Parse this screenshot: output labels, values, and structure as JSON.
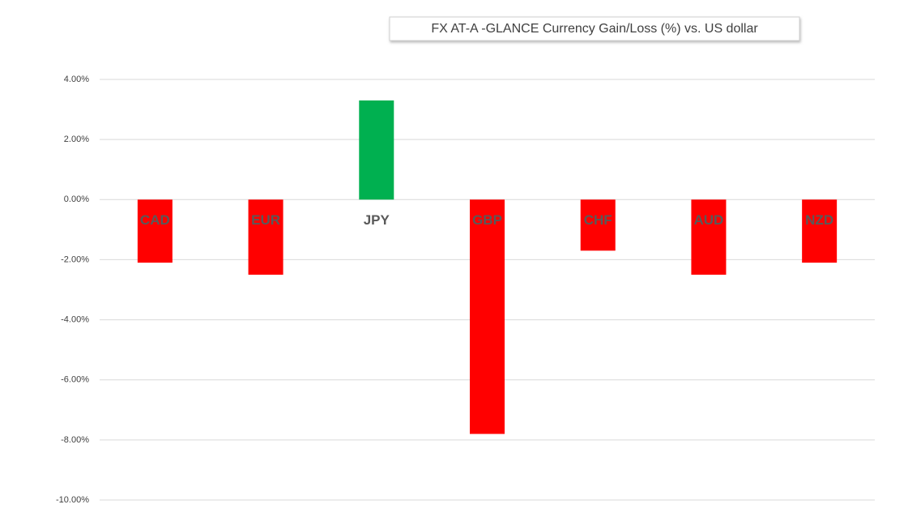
{
  "chart_data": {
    "type": "bar",
    "title": "FX AT-A -GLANCE  Currency  Gain/Loss (%) vs. US dollar",
    "categories": [
      "CAD",
      "EUR",
      "JPY",
      "GBP",
      "CHF",
      "AUD",
      "NZD"
    ],
    "values": [
      -2.1,
      -2.5,
      3.3,
      -7.8,
      -1.7,
      -2.5,
      -2.1
    ],
    "colors": [
      "#ff0000",
      "#ff0000",
      "#00b050",
      "#ff0000",
      "#ff0000",
      "#ff0000",
      "#ff0000"
    ],
    "ylim": [
      -10,
      4
    ],
    "yticks": [
      {
        "value": 4,
        "label": "4.00%"
      },
      {
        "value": 2,
        "label": "2.00%"
      },
      {
        "value": 0,
        "label": "0.00%"
      },
      {
        "value": -2,
        "label": "-2.00%"
      },
      {
        "value": -4,
        "label": "-4.00%"
      },
      {
        "value": -6,
        "label": "-6.00%"
      },
      {
        "value": -8,
        "label": "-8.00%"
      },
      {
        "value": -10,
        "label": "-10.00%"
      }
    ],
    "grid": true
  }
}
